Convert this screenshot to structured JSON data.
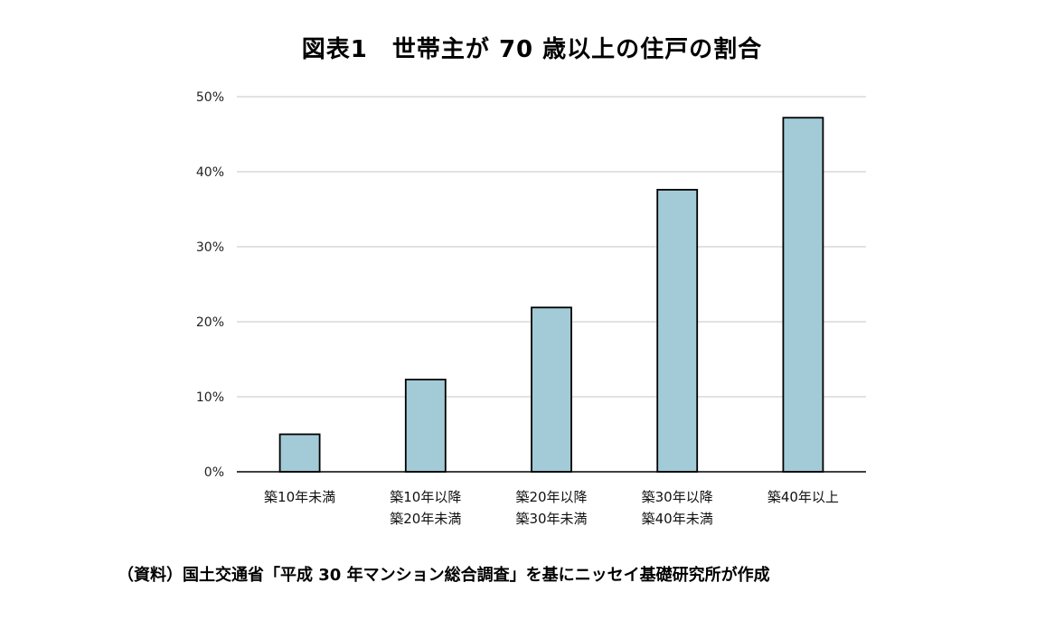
{
  "chart_data": {
    "type": "bar",
    "title": "図表1　世帯主が 70 歳以上の住戸の割合",
    "categories": [
      [
        "築10年未満"
      ],
      [
        "築10年以降",
        "築20年未満"
      ],
      [
        "築20年以降",
        "築30年未満"
      ],
      [
        "築30年以降",
        "築40年未満"
      ],
      [
        "築40年以上"
      ]
    ],
    "values": [
      5.0,
      12.3,
      21.9,
      37.6,
      47.2
    ],
    "ylim": [
      0,
      50
    ],
    "yticks": [
      0,
      10,
      20,
      30,
      40,
      50
    ],
    "ytick_labels": [
      "0%",
      "10%",
      "20%",
      "30%",
      "40%",
      "50%"
    ],
    "xlabel": "",
    "ylabel": "",
    "grid": true,
    "bar_color": "#a2cbd7",
    "bar_edge_color": "#000000",
    "grid_color": "#d9d9d9"
  },
  "source_note": "（資料）国土交通省「平成 30 年マンション総合調査」を基にニッセイ基礎研究所が作成"
}
